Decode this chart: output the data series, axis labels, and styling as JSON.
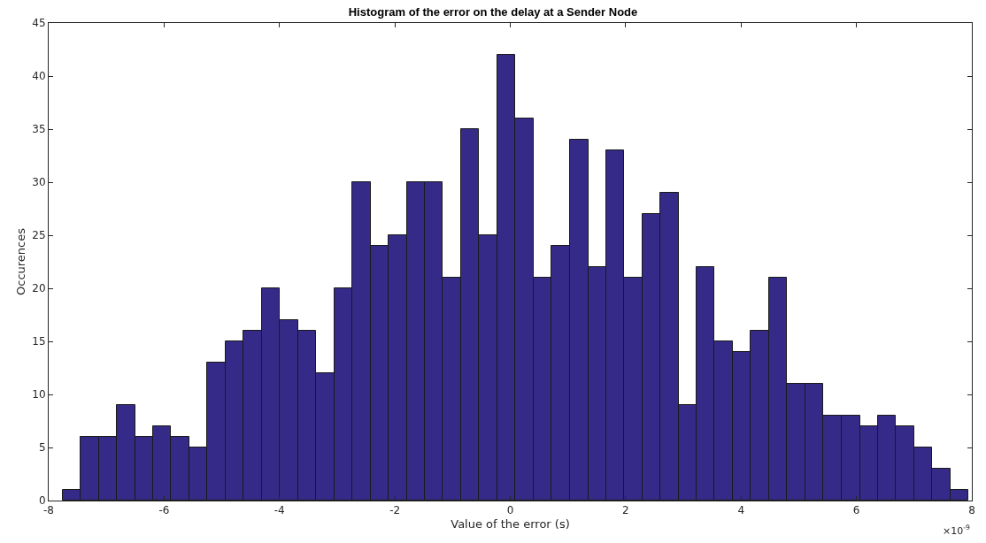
{
  "chart_data": {
    "type": "histogram",
    "title": "Histogram of the error on the delay at a Sender Node",
    "xlabel": "Value of the error (s)",
    "ylabel": "Occurences",
    "annotations": [
      "×10$^{-9}$"
    ],
    "bins": [
      -7.76,
      -7.45,
      -7.13,
      -6.82,
      -6.5,
      -6.19,
      -5.88,
      -5.56,
      -5.25,
      -4.93,
      -4.62,
      -4.31,
      -3.99,
      -3.68,
      -3.36,
      -3.05,
      -2.74,
      -2.42,
      -2.11,
      -1.79,
      -1.48,
      -1.17,
      -0.85,
      -0.54,
      -0.22,
      0.09,
      0.4,
      0.72,
      1.03,
      1.35,
      1.66,
      1.97,
      2.29,
      2.6,
      2.92,
      3.23,
      3.54,
      3.86,
      4.17,
      4.49,
      4.8,
      5.11,
      5.43,
      5.74,
      6.06,
      6.37,
      6.68,
      7.0,
      7.31,
      7.63,
      7.94
    ],
    "values": [
      1,
      6,
      6,
      9,
      6,
      7,
      6,
      5,
      13,
      15,
      16,
      20,
      17,
      16,
      12,
      20,
      30,
      24,
      25,
      30,
      30,
      21,
      35,
      25,
      42,
      36,
      21,
      24,
      34,
      22,
      33,
      21,
      27,
      29,
      9,
      22,
      15,
      14,
      16,
      21,
      11,
      11,
      8,
      8,
      7,
      8,
      7,
      5,
      3,
      1
    ],
    "color": "#352a87",
    "xlim": [
      -8,
      8
    ],
    "xticks": [
      -8,
      -6,
      -4,
      -2,
      0,
      2,
      4,
      6,
      8
    ],
    "ylim": [
      0,
      45
    ],
    "yticks": [
      0,
      5,
      10,
      15,
      20,
      25,
      30,
      35,
      40,
      45
    ],
    "grid": false
  }
}
